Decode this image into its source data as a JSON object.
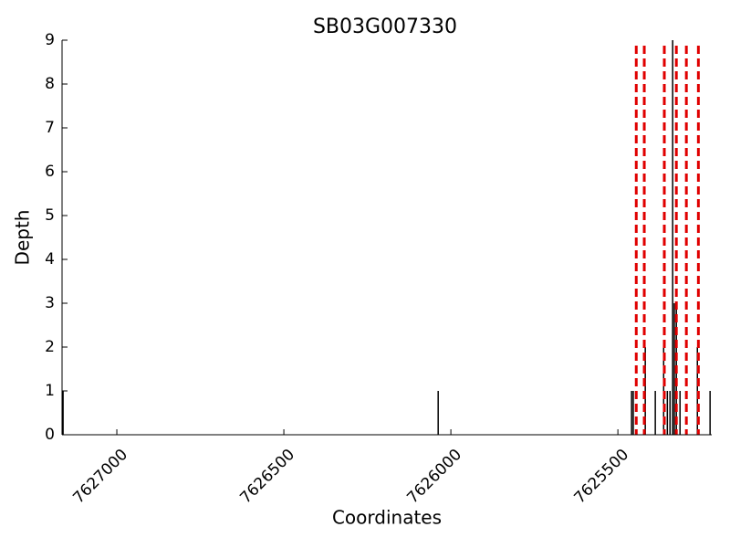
{
  "chart_data": {
    "type": "bar",
    "title": "SB03G007330",
    "xlabel": "Coordinates",
    "ylabel": "Depth",
    "x": [
      7627161,
      7626038,
      7625459,
      7625454,
      7625418,
      7625388,
      7625363,
      7625352,
      7625344,
      7625336,
      7625331,
      7625325,
      7625314,
      7625262,
      7625224
    ],
    "values": [
      1,
      1,
      1,
      1,
      2,
      1,
      2,
      1,
      1,
      9,
      3,
      3,
      1,
      2,
      1
    ],
    "color": "#000000",
    "vlines": [
      7625445,
      7625421,
      7625361,
      7625325,
      7625295,
      7625259
    ],
    "vline_color": "#e00000",
    "xlim": [
      7627164,
      7625219
    ],
    "xticks": [
      7627000,
      7626500,
      7626000,
      7625500
    ],
    "ylim": [
      0,
      9
    ],
    "yticks": [
      0,
      1,
      2,
      3,
      4,
      5,
      6,
      7,
      8,
      9
    ],
    "grid": false
  }
}
